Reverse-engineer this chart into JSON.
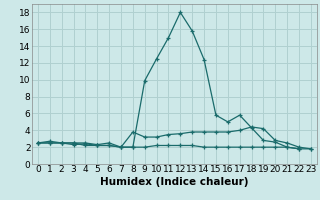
{
  "xlabel": "Humidex (Indice chaleur)",
  "ylabel": "",
  "background_color": "#cde8e8",
  "grid_color": "#b0d0d0",
  "line_color": "#1a6b6b",
  "x_values": [
    0,
    1,
    2,
    3,
    4,
    5,
    6,
    7,
    8,
    9,
    10,
    11,
    12,
    13,
    14,
    15,
    16,
    17,
    18,
    19,
    20,
    21,
    22,
    23
  ],
  "series": [
    [
      2.5,
      2.7,
      2.5,
      2.3,
      2.4,
      2.2,
      2.2,
      2.0,
      2.0,
      9.9,
      12.5,
      15.0,
      18.0,
      15.8,
      12.4,
      5.8,
      5.0,
      5.8,
      4.3,
      2.8,
      2.6,
      2.0,
      1.8,
      null
    ],
    [
      2.5,
      2.5,
      2.5,
      2.5,
      2.5,
      2.3,
      2.5,
      2.0,
      3.8,
      3.2,
      3.2,
      3.5,
      3.6,
      3.8,
      3.8,
      3.8,
      3.8,
      4.0,
      4.4,
      4.2,
      2.8,
      2.5,
      2.0,
      1.8
    ],
    [
      2.5,
      2.5,
      2.5,
      2.5,
      2.2,
      2.2,
      2.2,
      2.0,
      2.0,
      2.0,
      2.2,
      2.2,
      2.2,
      2.2,
      2.0,
      2.0,
      2.0,
      2.0,
      2.0,
      2.0,
      2.0,
      2.0,
      1.8,
      1.8
    ]
  ],
  "ylim": [
    0,
    19
  ],
  "xlim": [
    -0.5,
    23.5
  ],
  "yticks": [
    0,
    2,
    4,
    6,
    8,
    10,
    12,
    14,
    16,
    18
  ],
  "xticks": [
    0,
    1,
    2,
    3,
    4,
    5,
    6,
    7,
    8,
    9,
    10,
    11,
    12,
    13,
    14,
    15,
    16,
    17,
    18,
    19,
    20,
    21,
    22,
    23
  ],
  "tick_fontsize": 6.5,
  "label_fontsize": 7.5
}
